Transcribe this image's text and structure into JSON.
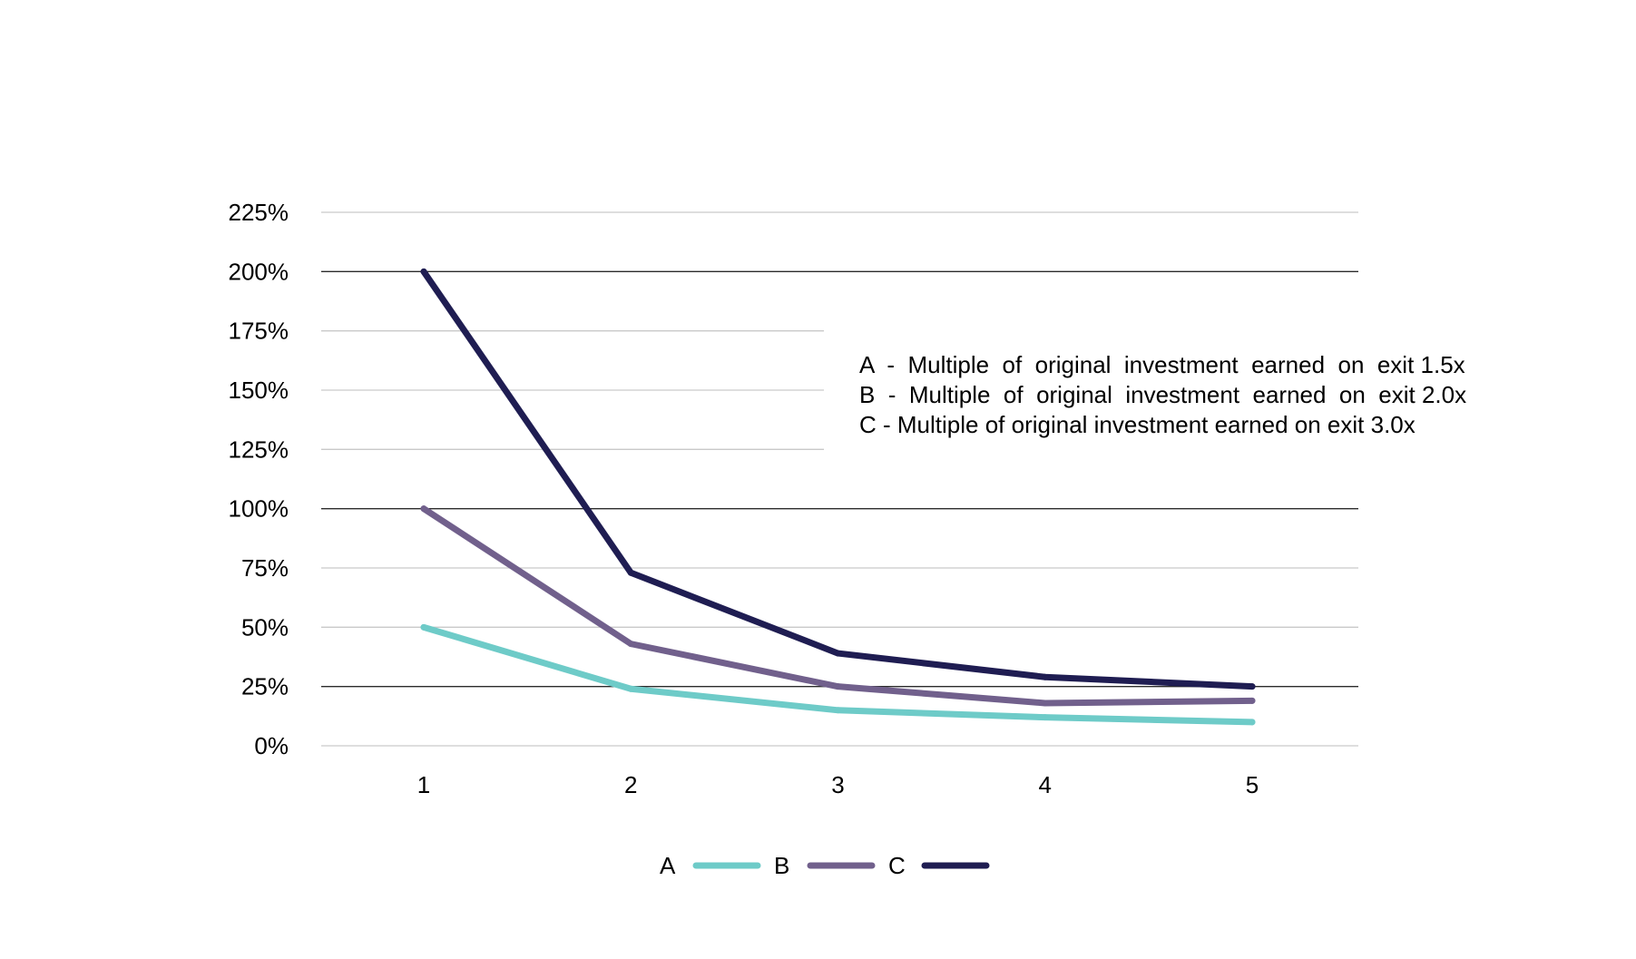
{
  "chart_data": {
    "type": "line",
    "title": "",
    "xlabel": "",
    "ylabel": "",
    "x": [
      1,
      2,
      3,
      4,
      5
    ],
    "x_tick_labels": [
      "1",
      "2",
      "3",
      "4",
      "5"
    ],
    "ylim": [
      0,
      225
    ],
    "y_ticks": [
      0,
      25,
      50,
      75,
      100,
      125,
      150,
      175,
      200,
      225
    ],
    "y_tick_labels": [
      "0%",
      "25%",
      "50%",
      "75%",
      "100%",
      "125%",
      "150%",
      "175%",
      "200%",
      "225%"
    ],
    "grid": true,
    "legend_position": "bottom",
    "series": [
      {
        "name": "A",
        "color": "#6ecbc8",
        "values": [
          50,
          24,
          15,
          12,
          10
        ]
      },
      {
        "name": "B",
        "color": "#71608c",
        "values": [
          100,
          43,
          25,
          18,
          19
        ]
      },
      {
        "name": "C",
        "color": "#1f1d52",
        "values": [
          200,
          73,
          39,
          29,
          25
        ]
      }
    ],
    "annotation_lines": [
      "A  -  Multiple  of  original  investment  earned  on  exit 1.5x",
      "B  -  Multiple  of  original  investment  earned  on  exit 2.0x",
      "C - Multiple of original investment earned on exit 3.0x"
    ]
  }
}
